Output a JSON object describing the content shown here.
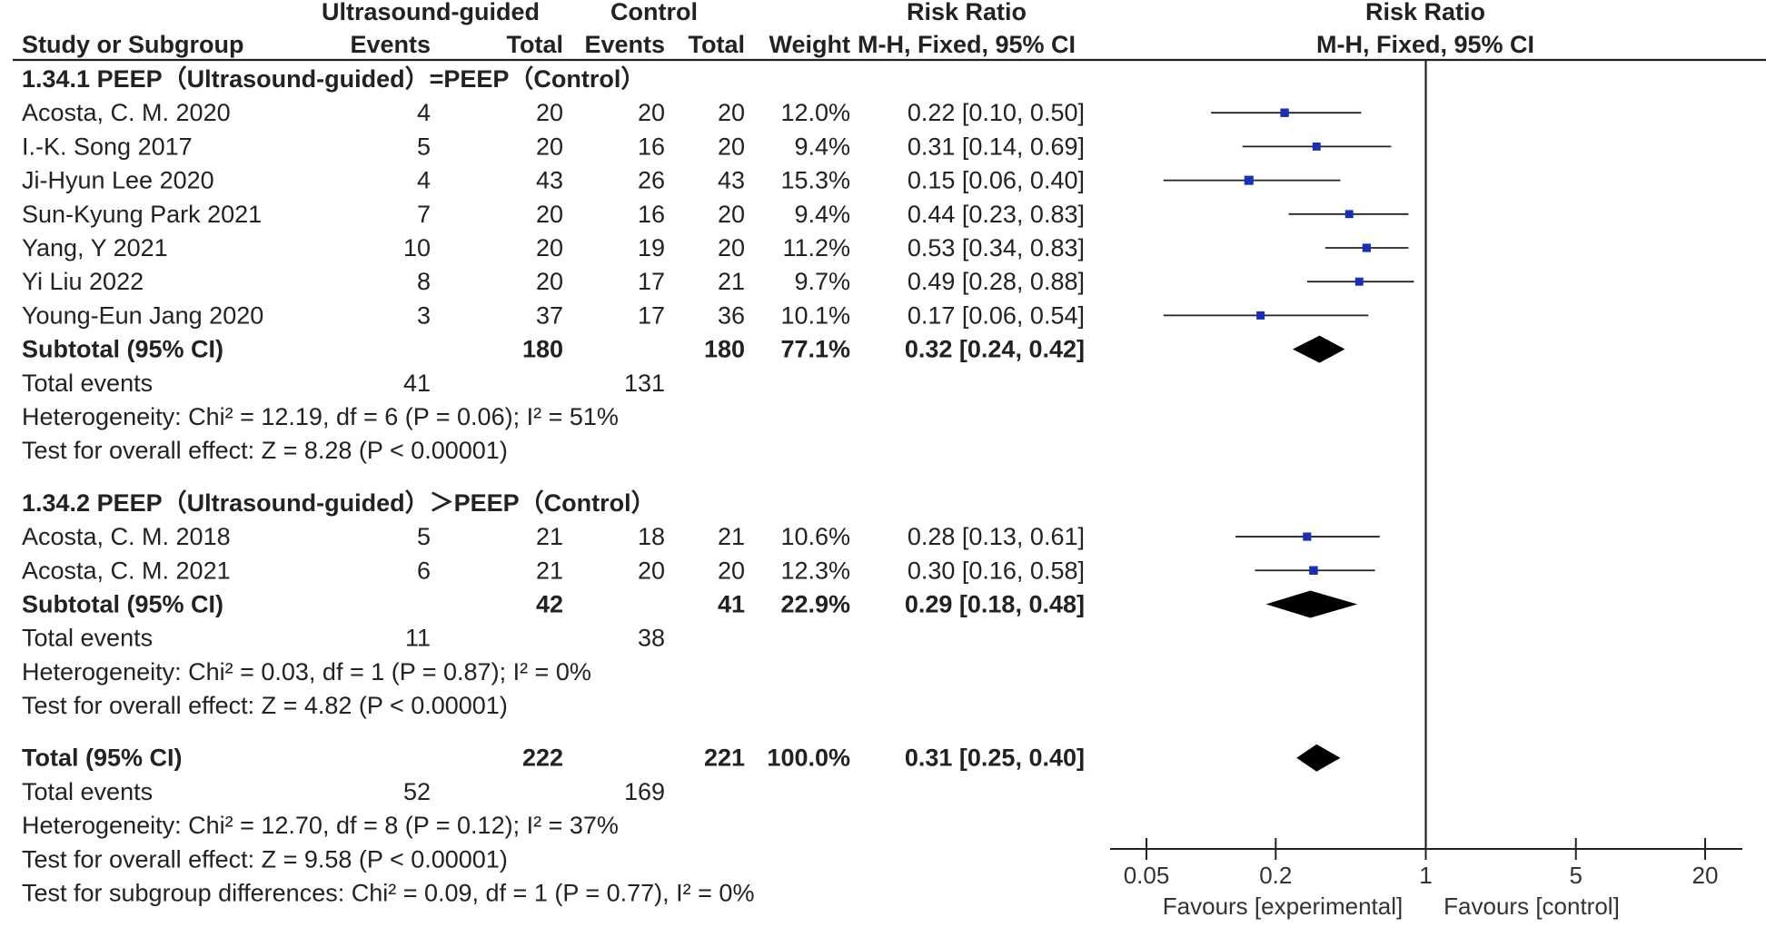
{
  "chart_data": {
    "type": "forest",
    "scale": "log",
    "x_ticks": [
      {
        "value": 0.05,
        "label": "0.05"
      },
      {
        "value": 0.2,
        "label": "0.2"
      },
      {
        "value": 1,
        "label": "1"
      },
      {
        "value": 5,
        "label": "5"
      },
      {
        "value": 20,
        "label": "20"
      }
    ],
    "favours_left": "Favours [experimental]",
    "favours_right": "Favours [control]",
    "header": {
      "group1": "Ultrasound-guided",
      "group2": "Control",
      "study": "Study or Subgroup",
      "events1": "Events",
      "total1": "Total",
      "events2": "Events",
      "total2": "Total",
      "weight": "Weight",
      "rr_title": "Risk Ratio",
      "rr_method": "M-H, Fixed, 95% CI",
      "plot_title": "Risk Ratio",
      "plot_method": "M-H, Fixed, 95% CI"
    },
    "subgroups": [
      {
        "title": "1.34.1 PEEP（Ultrasound-guided）=PEEP（Control）",
        "studies": [
          {
            "name": "Acosta, C. M. 2020",
            "e1": "4",
            "n1": "20",
            "e2": "20",
            "n2": "20",
            "weight": "12.0%",
            "ci_text": "0.22 [0.10, 0.50]",
            "rr": 0.22,
            "lo": 0.1,
            "hi": 0.5
          },
          {
            "name": "I.-K. Song 2017",
            "e1": "5",
            "n1": "20",
            "e2": "16",
            "n2": "20",
            "weight": "9.4%",
            "ci_text": "0.31 [0.14, 0.69]",
            "rr": 0.31,
            "lo": 0.14,
            "hi": 0.69
          },
          {
            "name": "Ji-Hyun Lee 2020",
            "e1": "4",
            "n1": "43",
            "e2": "26",
            "n2": "43",
            "weight": "15.3%",
            "ci_text": "0.15 [0.06, 0.40]",
            "rr": 0.15,
            "lo": 0.06,
            "hi": 0.4
          },
          {
            "name": "Sun-Kyung Park 2021",
            "e1": "7",
            "n1": "20",
            "e2": "16",
            "n2": "20",
            "weight": "9.4%",
            "ci_text": "0.44 [0.23, 0.83]",
            "rr": 0.44,
            "lo": 0.23,
            "hi": 0.83
          },
          {
            "name": "Yang, Y 2021",
            "e1": "10",
            "n1": "20",
            "e2": "19",
            "n2": "20",
            "weight": "11.2%",
            "ci_text": "0.53 [0.34, 0.83]",
            "rr": 0.53,
            "lo": 0.34,
            "hi": 0.83
          },
          {
            "name": "Yi Liu 2022",
            "e1": "8",
            "n1": "20",
            "e2": "17",
            "n2": "21",
            "weight": "9.7%",
            "ci_text": "0.49 [0.28, 0.88]",
            "rr": 0.49,
            "lo": 0.28,
            "hi": 0.88
          },
          {
            "name": "Young-Eun Jang 2020",
            "e1": "3",
            "n1": "37",
            "e2": "17",
            "n2": "36",
            "weight": "10.1%",
            "ci_text": "0.17 [0.06, 0.54]",
            "rr": 0.17,
            "lo": 0.06,
            "hi": 0.54
          }
        ],
        "subtotal": {
          "label": "Subtotal (95% CI)",
          "n1": "180",
          "n2": "180",
          "weight": "77.1%",
          "ci_text": "0.32 [0.24, 0.42]",
          "rr": 0.32,
          "lo": 0.24,
          "hi": 0.42
        },
        "total_events": {
          "label": "Total events",
          "e1": "41",
          "e2": "131"
        },
        "heterogeneity": "Heterogeneity: Chi² = 12.19, df = 6 (P = 0.06); I² = 51%",
        "overall_effect": "Test for overall effect: Z = 8.28 (P < 0.00001)"
      },
      {
        "title": "1.34.2 PEEP（Ultrasound-guided）＞PEEP（Control）",
        "studies": [
          {
            "name": "Acosta, C. M. 2018",
            "e1": "5",
            "n1": "21",
            "e2": "18",
            "n2": "21",
            "weight": "10.6%",
            "ci_text": "0.28 [0.13, 0.61]",
            "rr": 0.28,
            "lo": 0.13,
            "hi": 0.61
          },
          {
            "name": "Acosta, C. M. 2021",
            "e1": "6",
            "n1": "21",
            "e2": "20",
            "n2": "20",
            "weight": "12.3%",
            "ci_text": "0.30 [0.16, 0.58]",
            "rr": 0.3,
            "lo": 0.16,
            "hi": 0.58
          }
        ],
        "subtotal": {
          "label": "Subtotal (95% CI)",
          "n1": "42",
          "n2": "41",
          "weight": "22.9%",
          "ci_text": "0.29 [0.18, 0.48]",
          "rr": 0.29,
          "lo": 0.18,
          "hi": 0.48
        },
        "total_events": {
          "label": "Total events",
          "e1": "11",
          "e2": "38"
        },
        "heterogeneity": "Heterogeneity: Chi² = 0.03, df = 1 (P = 0.87); I² = 0%",
        "overall_effect": "Test for overall effect: Z = 4.82 (P < 0.00001)"
      }
    ],
    "overall": {
      "label": "Total (95% CI)",
      "n1": "222",
      "n2": "221",
      "weight": "100.0%",
      "ci_text": "0.31 [0.25, 0.40]",
      "rr": 0.31,
      "lo": 0.25,
      "hi": 0.4,
      "total_events": {
        "label": "Total events",
        "e1": "52",
        "e2": "169"
      },
      "heterogeneity": "Heterogeneity: Chi² = 12.70, df = 8 (P = 0.12); I² = 37%",
      "overall_effect": "Test for overall effect: Z = 9.58 (P < 0.00001)",
      "subgroup_diff": "Test for subgroup differences: Chi² = 0.09, df = 1 (P = 0.77), I² = 0%"
    },
    "colors": {
      "marker": "#1a2fb8",
      "diamond": "#000000",
      "line": "#222222"
    }
  }
}
